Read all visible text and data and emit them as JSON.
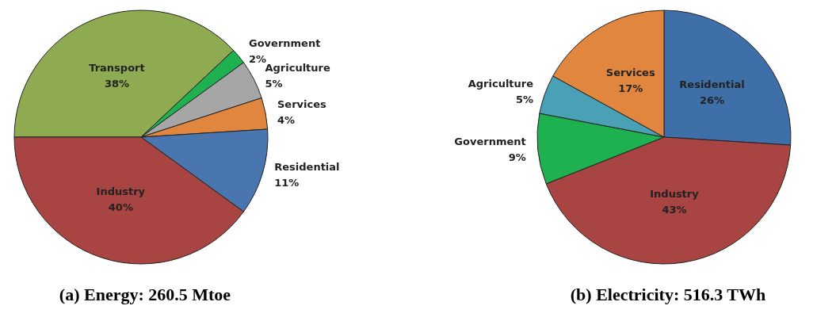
{
  "chart_data": [
    {
      "type": "pie",
      "title": "(a) Energy: 260.5 Mtoe",
      "categories": [
        "Transport",
        "Government",
        "Agriculture",
        "Services",
        "Residential",
        "Industry"
      ],
      "values": [
        38,
        2,
        5,
        4,
        11,
        40
      ],
      "colors": [
        "#8fab52",
        "#1fb14f",
        "#a6a6a6",
        "#e0863e",
        "#4a76b0",
        "#a84442"
      ],
      "value_labels": [
        "38%",
        "2%",
        "5%",
        "4%",
        "11%",
        "40%"
      ],
      "legend": false
    },
    {
      "type": "pie",
      "title": "(b) Electricity: 516.3 TWh",
      "categories": [
        "Residential",
        "Industry",
        "Government",
        "Agriculture",
        "Services"
      ],
      "values": [
        26,
        43,
        9,
        5,
        17
      ],
      "colors": [
        "#3f6fa8",
        "#a84442",
        "#1fb14f",
        "#4aa0b5",
        "#e0863e"
      ],
      "value_labels": [
        "26%",
        "43%",
        "9%",
        "5%",
        "17%"
      ],
      "legend": false
    }
  ]
}
